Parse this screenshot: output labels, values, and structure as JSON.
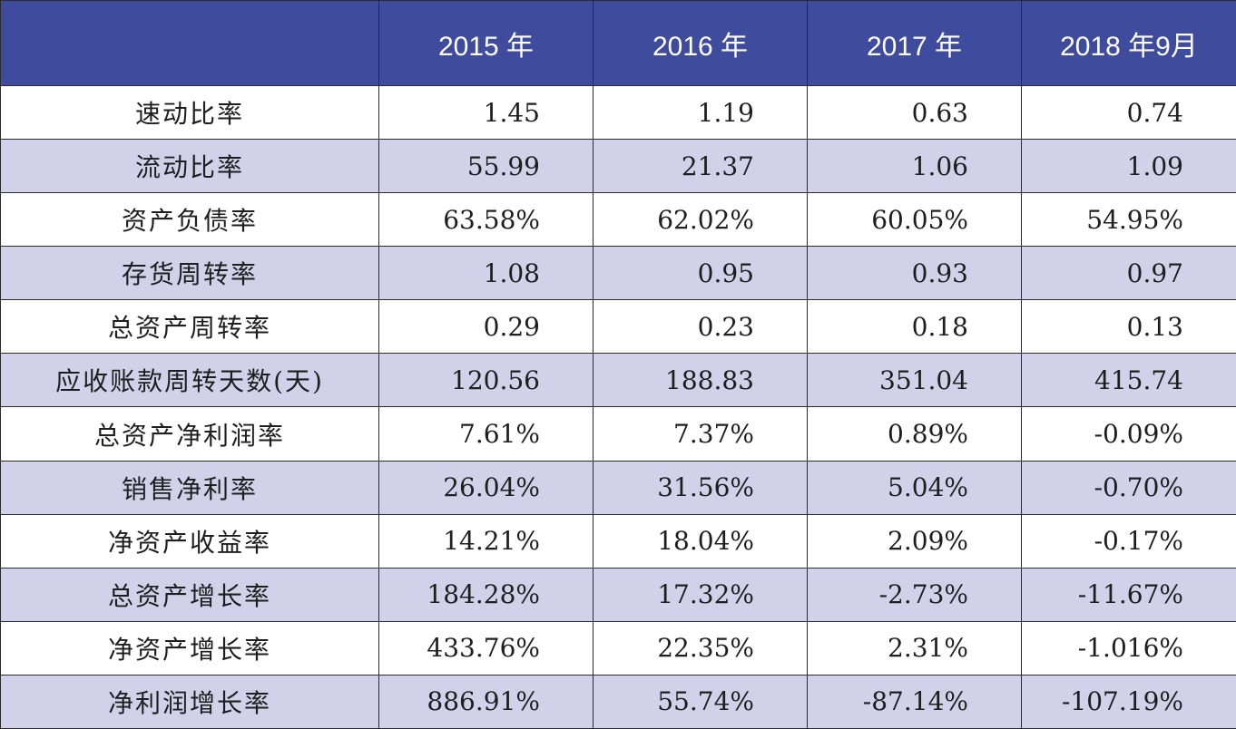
{
  "table": {
    "header": [
      "",
      "2015 年",
      "2016 年",
      "2017 年",
      "2018 年9月"
    ],
    "rows": [
      {
        "label": "速动比率",
        "values": [
          "1.45",
          "1.19",
          "0.63",
          "0.74"
        ]
      },
      {
        "label": "流动比率",
        "values": [
          "55.99",
          "21.37",
          "1.06",
          "1.09"
        ]
      },
      {
        "label": "资产负债率",
        "values": [
          "63.58%",
          "62.02%",
          "60.05%",
          "54.95%"
        ]
      },
      {
        "label": "存货周转率",
        "values": [
          "1.08",
          "0.95",
          "0.93",
          "0.97"
        ]
      },
      {
        "label": "总资产周转率",
        "values": [
          "0.29",
          "0.23",
          "0.18",
          "0.13"
        ]
      },
      {
        "label": "应收账款周转天数(天)",
        "values": [
          "120.56",
          "188.83",
          "351.04",
          "415.74"
        ]
      },
      {
        "label": "总资产净利润率",
        "values": [
          "7.61%",
          "7.37%",
          "0.89%",
          "-0.09%"
        ]
      },
      {
        "label": "销售净利率",
        "values": [
          "26.04%",
          "31.56%",
          "5.04%",
          "-0.70%"
        ]
      },
      {
        "label": "净资产收益率",
        "values": [
          "14.21%",
          "18.04%",
          "2.09%",
          "-0.17%"
        ]
      },
      {
        "label": "总资产增长率",
        "values": [
          "184.28%",
          "17.32%",
          "-2.73%",
          "-11.67%"
        ]
      },
      {
        "label": "净资产增长率",
        "values": [
          "433.76%",
          "22.35%",
          "2.31%",
          "-1.016%"
        ]
      },
      {
        "label": "净利润增长率",
        "values": [
          "886.91%",
          "55.74%",
          "-87.14%",
          "-107.19%"
        ]
      }
    ]
  },
  "colors": {
    "header_bg": "#3f4b9c",
    "header_text": "#ffffff",
    "stripe_bg": "#d3d1ea",
    "row_bg": "#ffffff",
    "border": "#2b2b2b"
  }
}
